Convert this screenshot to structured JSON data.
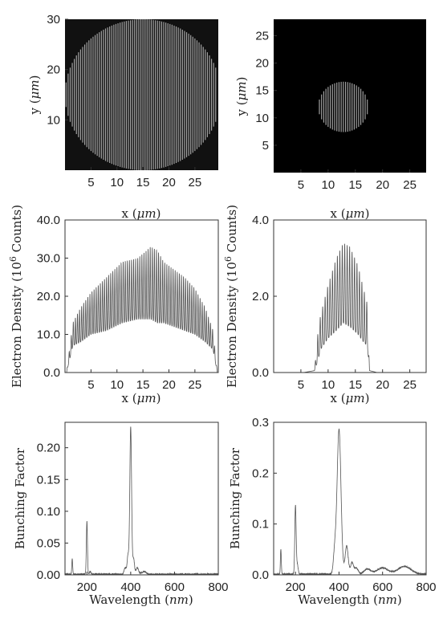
{
  "chart_data": [
    {
      "id": "p1",
      "type": "heatmap",
      "xlabel_pre": "x (",
      "xlabel_unit": "μm",
      "xlabel_post": ")",
      "ylabel_pre": "y (",
      "ylabel_unit": "μm",
      "ylabel_post": ")",
      "xlim": [
        0,
        29.5
      ],
      "ylim": [
        0,
        30
      ],
      "xticks": [
        5,
        10,
        15,
        20,
        25
      ],
      "yticks": [
        10,
        20,
        30
      ],
      "disk": {
        "cx": 15,
        "cy": 15,
        "r": 15,
        "clip_right_x": 29
      },
      "fringe_period": 0.4,
      "colors": {
        "background": "#111111",
        "fringe": "#bdbdbd"
      }
    },
    {
      "id": "p2",
      "type": "heatmap",
      "xlabel_pre": "x (",
      "xlabel_unit": "μm",
      "xlabel_post": ")",
      "ylabel_pre": "y (",
      "ylabel_unit": "μm",
      "ylabel_post": ")",
      "xlim": [
        0,
        28
      ],
      "ylim": [
        0,
        28
      ],
      "xticks": [
        5,
        10,
        15,
        20,
        25
      ],
      "yticks": [
        5,
        10,
        15,
        20,
        25
      ],
      "disk": {
        "cx": 12.8,
        "cy": 12,
        "r": 4.6
      },
      "fringe_period": 0.4,
      "colors": {
        "background": "#000000",
        "fringe": "#bdbdbd"
      }
    },
    {
      "id": "p3",
      "type": "line",
      "xlabel_pre": "x (",
      "xlabel_unit": "μm",
      "xlabel_post": ")",
      "ylabel_pre": "Electron Density (10",
      "ylabel_sup": "6",
      "ylabel_post": " Counts)",
      "xlim": [
        0,
        29.5
      ],
      "ylim": [
        0,
        40
      ],
      "xticks": [
        5,
        10,
        15,
        20,
        25
      ],
      "yticks": [
        0,
        10,
        20,
        30,
        40
      ],
      "ytick_labels": [
        "0.0",
        "10.0",
        "20.0",
        "30.0",
        "40.0"
      ],
      "envelope": {
        "x": [
          0.3,
          1.5,
          3,
          5,
          8,
          11,
          14,
          16.5,
          17.8,
          19,
          21,
          23,
          25,
          27,
          28.5,
          29.3
        ],
        "peak": [
          0,
          13,
          17,
          21,
          25,
          29,
          30,
          33,
          32,
          29,
          27,
          25,
          22,
          17,
          11,
          0
        ],
        "base": [
          0,
          7,
          8,
          10,
          11,
          13,
          14,
          14,
          13,
          13,
          12,
          11,
          10,
          8,
          6,
          0
        ]
      },
      "fringe_period": 0.4
    },
    {
      "id": "p4",
      "type": "line",
      "xlabel_pre": "x (",
      "xlabel_unit": "μm",
      "xlabel_post": ")",
      "ylabel_pre": "Electron Density (10",
      "ylabel_sup": "6",
      "ylabel_post": " Counts)",
      "xlim": [
        0,
        28
      ],
      "ylim": [
        0,
        4
      ],
      "xticks": [
        5,
        10,
        15,
        20,
        25
      ],
      "yticks": [
        0,
        2,
        4
      ],
      "ytick_labels": [
        "0.0",
        "2.0",
        "4.0"
      ],
      "envelope": {
        "x": [
          5.5,
          7.5,
          8.1,
          8.6,
          10,
          11.5,
          12.8,
          14,
          15.5,
          16.5,
          17.2,
          17.6,
          19
        ],
        "peak": [
          0,
          0.05,
          1.0,
          1.5,
          2.3,
          3.0,
          3.4,
          3.3,
          2.8,
          2.2,
          1.8,
          0.05,
          0
        ],
        "base": [
          0,
          0.05,
          0.3,
          0.6,
          0.9,
          1.1,
          1.3,
          1.2,
          1.0,
          0.8,
          0.7,
          0.05,
          0
        ]
      },
      "fringe_period": 0.45
    },
    {
      "id": "p5",
      "type": "line",
      "xlabel_pre": "Wavelength (",
      "xlabel_unit": "nm",
      "xlabel_post": ")",
      "ylabel": "Bunching Factor",
      "xlim": [
        100,
        800
      ],
      "ylim": [
        0,
        0.24
      ],
      "xticks": [
        200,
        400,
        600,
        800
      ],
      "yticks": [
        0,
        0.05,
        0.1,
        0.15,
        0.2
      ],
      "ytick_labels": [
        "0.00",
        "0.05",
        "0.10",
        "0.15",
        "0.20"
      ],
      "peaks": [
        {
          "x": 133,
          "y": 0.024,
          "w": 2
        },
        {
          "x": 200,
          "y": 0.083,
          "w": 2.5
        },
        {
          "x": 215,
          "y": 0.004,
          "w": 4
        },
        {
          "x": 400,
          "y": 0.232,
          "w": 4
        },
        {
          "x": 388,
          "y": 0.03,
          "w": 4
        },
        {
          "x": 413,
          "y": 0.025,
          "w": 4
        },
        {
          "x": 375,
          "y": 0.01,
          "w": 5
        },
        {
          "x": 430,
          "y": 0.01,
          "w": 6
        },
        {
          "x": 460,
          "y": 0.004,
          "w": 10
        }
      ],
      "noise_level": 0.002
    },
    {
      "id": "p6",
      "type": "line",
      "xlabel_pre": "Wavelength (",
      "xlabel_unit": "nm",
      "xlabel_post": ")",
      "ylabel": "Bunching Factor",
      "xlim": [
        100,
        800
      ],
      "ylim": [
        0,
        0.3
      ],
      "xticks": [
        200,
        400,
        600,
        800
      ],
      "yticks": [
        0,
        0.1,
        0.2,
        0.3
      ],
      "ytick_labels": [
        "0.0",
        "0.1",
        "0.2",
        "0.3"
      ],
      "peaks": [
        {
          "x": 133,
          "y": 0.05,
          "w": 2
        },
        {
          "x": 200,
          "y": 0.133,
          "w": 3
        },
        {
          "x": 208,
          "y": 0.02,
          "w": 4
        },
        {
          "x": 400,
          "y": 0.285,
          "w": 9
        },
        {
          "x": 380,
          "y": 0.04,
          "w": 6
        },
        {
          "x": 435,
          "y": 0.055,
          "w": 7
        },
        {
          "x": 460,
          "y": 0.022,
          "w": 7
        },
        {
          "x": 480,
          "y": 0.012,
          "w": 8
        },
        {
          "x": 530,
          "y": 0.01,
          "w": 15
        },
        {
          "x": 600,
          "y": 0.012,
          "w": 25
        },
        {
          "x": 700,
          "y": 0.015,
          "w": 30
        }
      ],
      "noise_level": 0.003
    }
  ]
}
